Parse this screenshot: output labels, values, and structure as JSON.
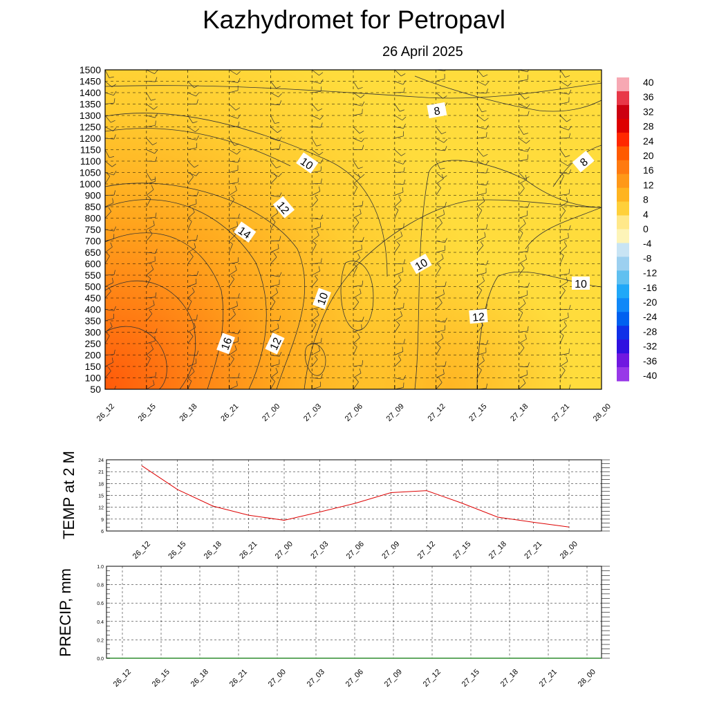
{
  "header": {
    "title": "Kazhydromet  for Petropavl",
    "date": "26 April 2025"
  },
  "colors": {
    "warm_low": "#ffdc3c",
    "warm_mid": "#ffa31c",
    "warm_high": "#ff5a0a",
    "temp_line": "#dd0000",
    "precip_line": "#2e8b2e"
  },
  "chart_data": [
    {
      "type": "heatmap",
      "title": "Kazhydromet  for Petropavl",
      "subtitle": "26 April 2025",
      "x_ticks": [
        "26_12",
        "26_15",
        "26_18",
        "26_21",
        "27_00",
        "27_03",
        "27_06",
        "27_09",
        "27_12",
        "27_15",
        "27_18",
        "27_21",
        "28_00"
      ],
      "y_ticks": [
        1500,
        1450,
        1400,
        1350,
        1300,
        1250,
        1200,
        1150,
        1100,
        1050,
        1000,
        900,
        850,
        800,
        750,
        700,
        650,
        600,
        550,
        500,
        450,
        400,
        350,
        300,
        250,
        200,
        150,
        100,
        50
      ],
      "colorbar_labels": [
        "40",
        "36",
        "32",
        "28",
        "24",
        "20",
        "16",
        "12",
        "8",
        "4",
        "0",
        "-4",
        "-8",
        "-12",
        "-16",
        "-20",
        "-24",
        "-28",
        "-32",
        "-36",
        "-40"
      ],
      "contour_labels": [
        {
          "text": "8"
        },
        {
          "text": "8"
        },
        {
          "text": "10"
        },
        {
          "text": "12"
        },
        {
          "text": "14"
        },
        {
          "text": "10"
        },
        {
          "text": "10"
        },
        {
          "text": "10"
        },
        {
          "text": "12"
        },
        {
          "text": "16"
        },
        {
          "text": "12"
        }
      ]
    },
    {
      "type": "line",
      "ylabel": "TEMP at 2 M",
      "x": [
        "26_12",
        "26_15",
        "26_18",
        "26_21",
        "27_00",
        "27_03",
        "27_06",
        "27_09",
        "27_12",
        "27_15",
        "27_18",
        "27_21",
        "28_00"
      ],
      "y_ticks": [
        "24",
        "21",
        "18",
        "15",
        "12",
        "9",
        "6"
      ],
      "ylim": [
        6,
        24
      ],
      "series": [
        {
          "values": [
            22.5,
            16.5,
            12.3,
            10.0,
            8.7,
            10.8,
            13.0,
            15.7,
            16.2,
            13.0,
            9.5,
            8.2,
            7.0
          ]
        }
      ]
    },
    {
      "type": "line",
      "ylabel": "PRECIP, mm",
      "x": [
        "26_12",
        "26_15",
        "26_18",
        "26_21",
        "27_00",
        "27_03",
        "27_06",
        "27_09",
        "27_12",
        "27_15",
        "27_18",
        "27_21",
        "28_00"
      ],
      "y_ticks": [
        "1.0",
        "0.8",
        "0.6",
        "0.4",
        "0.2",
        "0.0"
      ],
      "ylim": [
        0,
        1
      ],
      "series": [
        {
          "values": [
            0,
            0,
            0,
            0,
            0,
            0,
            0,
            0,
            0,
            0,
            0,
            0,
            0
          ]
        }
      ]
    }
  ]
}
